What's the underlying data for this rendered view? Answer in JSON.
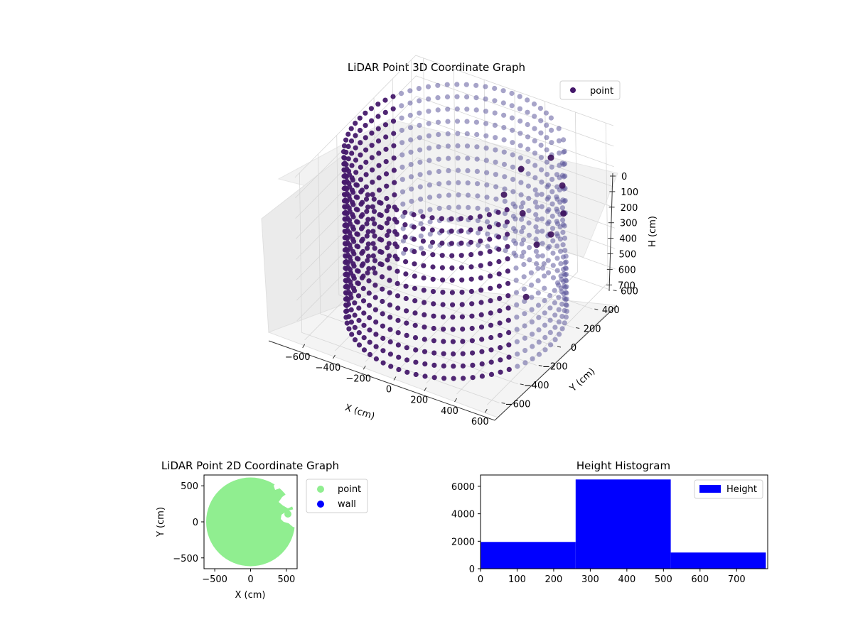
{
  "chart_data": [
    {
      "type": "scatter",
      "projection": "3d",
      "title": "LiDAR Point 3D Coordinate Graph",
      "xlabel": "X (cm)",
      "ylabel": "Y (cm)",
      "zlabel": "H (cm)",
      "xlim": [
        -650,
        650
      ],
      "ylim": [
        -650,
        650
      ],
      "zlim": [
        780,
        0
      ],
      "z_axis_inverted": true,
      "xticks": [
        "−600",
        "−400",
        "−200",
        "0",
        "200",
        "400",
        "600"
      ],
      "yticks": [
        "−600",
        "−400",
        "−200",
        "0",
        "200",
        "400",
        "600"
      ],
      "zticks": [
        "0",
        "100",
        "200",
        "300",
        "400",
        "500",
        "600",
        "700"
      ],
      "grid": true,
      "legend": {
        "position": "upper-right",
        "entries": [
          "point"
        ]
      },
      "series": [
        {
          "name": "point",
          "color": "#44166a",
          "shape": "cylindrical wall of points",
          "radius": 620,
          "height_range": [
            0,
            780
          ],
          "gap_side": "positive x",
          "x": [
            620,
            580,
            440,
            300,
            180,
            120,
            350,
            210,
            400
          ],
          "y": [
            20,
            220,
            437,
            544,
            420,
            330,
            300,
            380,
            100
          ],
          "h": [
            250,
            250,
            250,
            200,
            230,
            330,
            500,
            420,
            650
          ]
        }
      ]
    },
    {
      "type": "scatter",
      "title": "LiDAR Point 2D Coordinate Graph",
      "xlabel": "X (cm)",
      "ylabel": "Y (cm)",
      "xlim": [
        -650,
        650
      ],
      "ylim": [
        -650,
        650
      ],
      "xticks": [
        "−500",
        "0",
        "500"
      ],
      "yticks": [
        "−500",
        "0",
        "500"
      ],
      "legend": {
        "position": "outside-right",
        "entries": [
          "point",
          "wall"
        ]
      },
      "series": [
        {
          "name": "point",
          "color": "#90ee90",
          "shape": "filled disc",
          "center": [
            0,
            0
          ],
          "radius": 620
        },
        {
          "name": "wall",
          "color": "#0000ff",
          "x": [],
          "y": []
        }
      ]
    },
    {
      "type": "bar",
      "title": "Height Histogram",
      "xlabel": "",
      "ylabel": "",
      "bins": [
        [
          0,
          260
        ],
        [
          260,
          520
        ],
        [
          520,
          780
        ]
      ],
      "values": [
        1950,
        6500,
        1180
      ],
      "xlim": [
        0,
        785
      ],
      "ylim": [
        0,
        6825
      ],
      "xticks": [
        "0",
        "100",
        "200",
        "300",
        "400",
        "500",
        "600",
        "700"
      ],
      "yticks": [
        "0",
        "2000",
        "4000",
        "6000"
      ],
      "legend": {
        "position": "upper-right",
        "entries": [
          "Height"
        ]
      },
      "series": [
        {
          "name": "Height",
          "color": "#0000ff"
        }
      ]
    }
  ]
}
